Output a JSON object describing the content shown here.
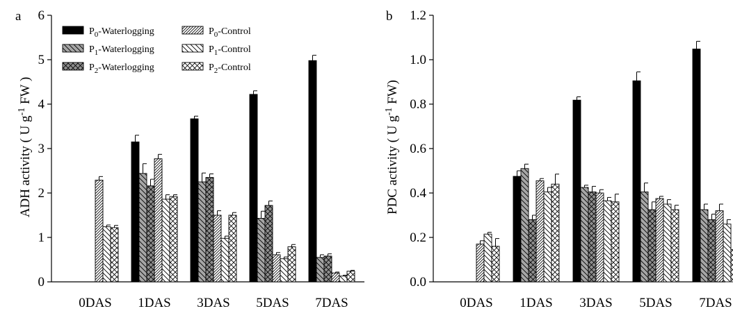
{
  "chart_data": [
    {
      "type": "bar",
      "panel_label": "a",
      "ylabel": "ADH activity ( U g-1 FW )",
      "ylim": [
        0,
        6
      ],
      "yticks": [
        "0",
        "1",
        "2",
        "3",
        "4",
        "5",
        "6"
      ],
      "categories": [
        "0DAS",
        "1DAS",
        "3DAS",
        "5DAS",
        "7DAS"
      ],
      "series": [
        {
          "name": "P0-Waterlogging",
          "values": [
            null,
            3.15,
            3.67,
            4.22,
            4.98
          ],
          "errors": [
            null,
            0.15,
            0.06,
            0.08,
            0.12
          ],
          "color": "#000000",
          "pattern": "solid"
        },
        {
          "name": "P1-Waterlogging",
          "values": [
            null,
            2.44,
            2.25,
            1.43,
            0.55
          ],
          "errors": [
            null,
            0.22,
            0.2,
            0.16,
            0.06
          ],
          "color": "#a6a6a6",
          "pattern": "grey-diag-back"
        },
        {
          "name": "P2-Waterlogging",
          "values": [
            null,
            2.16,
            2.35,
            1.72,
            0.58
          ],
          "errors": [
            null,
            0.15,
            0.08,
            0.1,
            0.05
          ],
          "color": "#8f8f8f",
          "pattern": "grey-cross"
        },
        {
          "name": "P0-Control",
          "values": [
            2.29,
            2.77,
            1.5,
            0.61,
            0.2
          ],
          "errors": [
            0.08,
            0.1,
            0.1,
            0.05,
            0.02
          ],
          "color": "#ffffff",
          "pattern": "diag-fwd-dense"
        },
        {
          "name": "P1-Control",
          "values": [
            1.24,
            1.86,
            0.98,
            0.52,
            0.13
          ],
          "errors": [
            0.04,
            0.1,
            0.05,
            0.04,
            0.02
          ],
          "color": "#ffffff",
          "pattern": "diag-back"
        },
        {
          "name": "P2-Control",
          "values": [
            1.22,
            1.92,
            1.5,
            0.79,
            0.24
          ],
          "errors": [
            0.05,
            0.04,
            0.06,
            0.05,
            0.02
          ],
          "color": "#ffffff",
          "pattern": "cross"
        }
      ],
      "legend_placement": "top-left"
    },
    {
      "type": "bar",
      "panel_label": "b",
      "ylabel": "PDC activity ( U g-1 FW)",
      "ylim": [
        0,
        1.2
      ],
      "yticks": [
        "0.0",
        "0.2",
        "0.4",
        "0.6",
        "0.8",
        "1.0",
        "1.2"
      ],
      "categories": [
        "0DAS",
        "1DAS",
        "3DAS",
        "5DAS",
        "7DAS"
      ],
      "series": [
        {
          "name": "P0-Waterlogging",
          "values": [
            null,
            0.475,
            0.818,
            0.905,
            1.048
          ],
          "errors": [
            null,
            0.025,
            0.015,
            0.04,
            0.035
          ],
          "color": "#000000",
          "pattern": "solid"
        },
        {
          "name": "P1-Waterlogging",
          "values": [
            null,
            0.51,
            0.425,
            0.405,
            0.325
          ],
          "errors": [
            null,
            0.02,
            0.01,
            0.04,
            0.025
          ],
          "color": "#a6a6a6",
          "pattern": "grey-diag-back"
        },
        {
          "name": "P2-Waterlogging",
          "values": [
            null,
            0.28,
            0.405,
            0.325,
            0.28
          ],
          "errors": [
            null,
            0.02,
            0.025,
            0.035,
            0.025
          ],
          "color": "#8f8f8f",
          "pattern": "grey-cross"
        },
        {
          "name": "P0-Control",
          "values": [
            0.17,
            0.455,
            0.4,
            0.375,
            0.32
          ],
          "errors": [
            0.015,
            0.01,
            0.015,
            0.01,
            0.03
          ],
          "color": "#ffffff",
          "pattern": "diag-fwd-dense"
        },
        {
          "name": "P1-Control",
          "values": [
            0.215,
            0.405,
            0.365,
            0.35,
            0.26
          ],
          "errors": [
            0.008,
            0.02,
            0.015,
            0.02,
            0.02
          ],
          "color": "#ffffff",
          "pattern": "diag-back"
        },
        {
          "name": "P2-Control",
          "values": [
            0.16,
            0.44,
            0.36,
            0.325,
            0.145
          ],
          "errors": [
            0.035,
            0.045,
            0.035,
            0.02,
            0.015
          ],
          "color": "#ffffff",
          "pattern": "cross"
        }
      ]
    }
  ]
}
